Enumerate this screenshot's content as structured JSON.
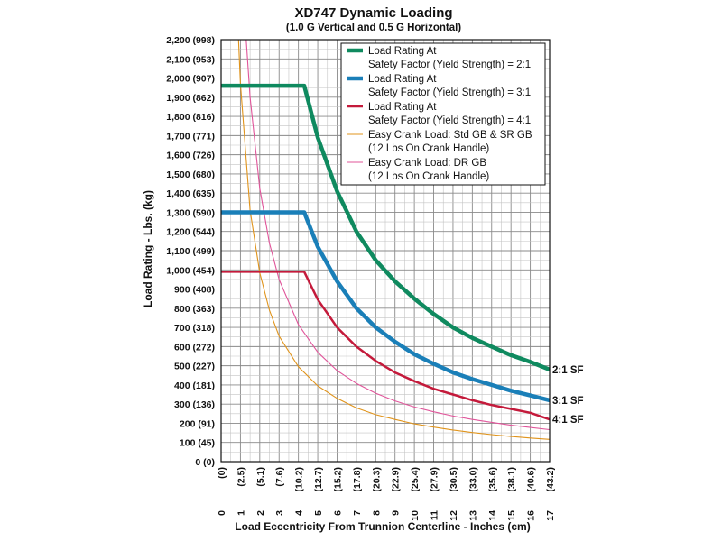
{
  "chart_data": {
    "type": "line",
    "title": "XD747 Dynamic Loading",
    "subtitle": "(1.0 G Vertical and 0.5 G Horizontal)",
    "xlabel": "Load Eccentricity From Trunnion Centerline - Inches (cm)",
    "ylabel": "Load Rating - Lbs. (kg)",
    "xlim": [
      0,
      17
    ],
    "ylim": [
      0,
      2200
    ],
    "x_ticks": [
      {
        "value": 0,
        "label": "0",
        "sub": "(0)"
      },
      {
        "value": 1,
        "label": "1",
        "sub": "(2.5)"
      },
      {
        "value": 2,
        "label": "2",
        "sub": "(5.1)"
      },
      {
        "value": 3,
        "label": "3",
        "sub": "(7.6)"
      },
      {
        "value": 4,
        "label": "4",
        "sub": "(10.2)"
      },
      {
        "value": 5,
        "label": "5",
        "sub": "(12.7)"
      },
      {
        "value": 6,
        "label": "6",
        "sub": "(15.2)"
      },
      {
        "value": 7,
        "label": "7",
        "sub": "(17.8)"
      },
      {
        "value": 8,
        "label": "8",
        "sub": "(20.3)"
      },
      {
        "value": 9,
        "label": "9",
        "sub": "(22.9)"
      },
      {
        "value": 10,
        "label": "10",
        "sub": "(25.4)"
      },
      {
        "value": 11,
        "label": "11",
        "sub": "(27.9)"
      },
      {
        "value": 12,
        "label": "12",
        "sub": "(30.5)"
      },
      {
        "value": 13,
        "label": "13",
        "sub": "(33.0)"
      },
      {
        "value": 14,
        "label": "14",
        "sub": "(35.6)"
      },
      {
        "value": 15,
        "label": "15",
        "sub": "(38.1)"
      },
      {
        "value": 16,
        "label": "16",
        "sub": "(40.6)"
      },
      {
        "value": 17,
        "label": "17",
        "sub": "(43.2)"
      }
    ],
    "y_ticks": [
      {
        "value": 0,
        "label": "0 (0)"
      },
      {
        "value": 100,
        "label": "100 (45)"
      },
      {
        "value": 200,
        "label": "200 (91)"
      },
      {
        "value": 300,
        "label": "300 (136)"
      },
      {
        "value": 400,
        "label": "400 (181)"
      },
      {
        "value": 500,
        "label": "500 (227)"
      },
      {
        "value": 600,
        "label": "600 (272)"
      },
      {
        "value": 700,
        "label": "700 (318)"
      },
      {
        "value": 800,
        "label": "800 (363)"
      },
      {
        "value": 900,
        "label": "900 (408)"
      },
      {
        "value": 1000,
        "label": "1,000 (454)"
      },
      {
        "value": 1100,
        "label": "1,100 (499)"
      },
      {
        "value": 1200,
        "label": "1,200 (544)"
      },
      {
        "value": 1300,
        "label": "1,300 (590)"
      },
      {
        "value": 1400,
        "label": "1,400 (635)"
      },
      {
        "value": 1500,
        "label": "1,500 (680)"
      },
      {
        "value": 1600,
        "label": "1,600 (726)"
      },
      {
        "value": 1700,
        "label": "1,700 (771)"
      },
      {
        "value": 1800,
        "label": "1,800 (816)"
      },
      {
        "value": 1900,
        "label": "1,900 (862)"
      },
      {
        "value": 2000,
        "label": "2,000 (907)"
      },
      {
        "value": 2100,
        "label": "2,100 (953)"
      },
      {
        "value": 2200,
        "label": "2,200 (998)"
      }
    ],
    "grid": true,
    "legend_position": "top-right",
    "series": [
      {
        "name": "Load Rating At\nSafety Factor (Yield Strength) = 2:1",
        "color": "#0f8a5f",
        "width": "thick",
        "end_label": "2:1 SF",
        "x": [
          0,
          4.3,
          5,
          6,
          7,
          8,
          9,
          10,
          11,
          12,
          13,
          14,
          15,
          16,
          17
        ],
        "y": [
          1960,
          1960,
          1690,
          1410,
          1200,
          1050,
          940,
          850,
          770,
          700,
          645,
          600,
          555,
          520,
          480
        ]
      },
      {
        "name": "Load Rating At\nSafety Factor (Yield Strength) = 3:1",
        "color": "#1a7fb8",
        "width": "thick",
        "end_label": "3:1 SF",
        "x": [
          0,
          4.3,
          5,
          6,
          7,
          8,
          9,
          10,
          11,
          12,
          13,
          14,
          15,
          16,
          17
        ],
        "y": [
          1300,
          1300,
          1120,
          940,
          800,
          700,
          625,
          560,
          510,
          465,
          430,
          400,
          370,
          345,
          320
        ]
      },
      {
        "name": "Load Rating At\nSafety Factor (Yield Strength) = 4:1",
        "color": "#c41a3b",
        "width": "medium",
        "end_label": "4:1 SF",
        "x": [
          0,
          4.3,
          5,
          6,
          7,
          8,
          9,
          10,
          11,
          12,
          13,
          14,
          15,
          16,
          17
        ],
        "y": [
          990,
          990,
          845,
          700,
          600,
          525,
          465,
          420,
          380,
          350,
          320,
          295,
          275,
          255,
          220
        ]
      },
      {
        "name": "Easy Crank Load: Std GB & SR GB\n(12 Lbs On Crank Handle)",
        "color": "#e0941c",
        "width": "thin",
        "x": [
          0.9,
          1,
          1.5,
          2,
          2.5,
          3,
          4,
          5,
          6,
          7,
          8,
          9,
          10,
          11,
          12,
          13,
          14,
          15,
          16,
          17
        ],
        "y": [
          2200,
          1970,
          1310,
          985,
          790,
          655,
          495,
          395,
          330,
          280,
          245,
          220,
          197,
          180,
          165,
          152,
          141,
          131,
          123,
          116
        ]
      },
      {
        "name": "Easy Crank Load: DR GB\n(12 Lbs On Crank Handle)",
        "color": "#e0559a",
        "width": "thin",
        "x": [
          1.3,
          1.5,
          2,
          2.5,
          3,
          4,
          5,
          6,
          7,
          8,
          9,
          10,
          11,
          12,
          13,
          14,
          15,
          16,
          17
        ],
        "y": [
          2200,
          1900,
          1425,
          1140,
          950,
          715,
          570,
          475,
          408,
          357,
          317,
          285,
          260,
          238,
          220,
          205,
          190,
          178,
          167
        ]
      }
    ]
  }
}
